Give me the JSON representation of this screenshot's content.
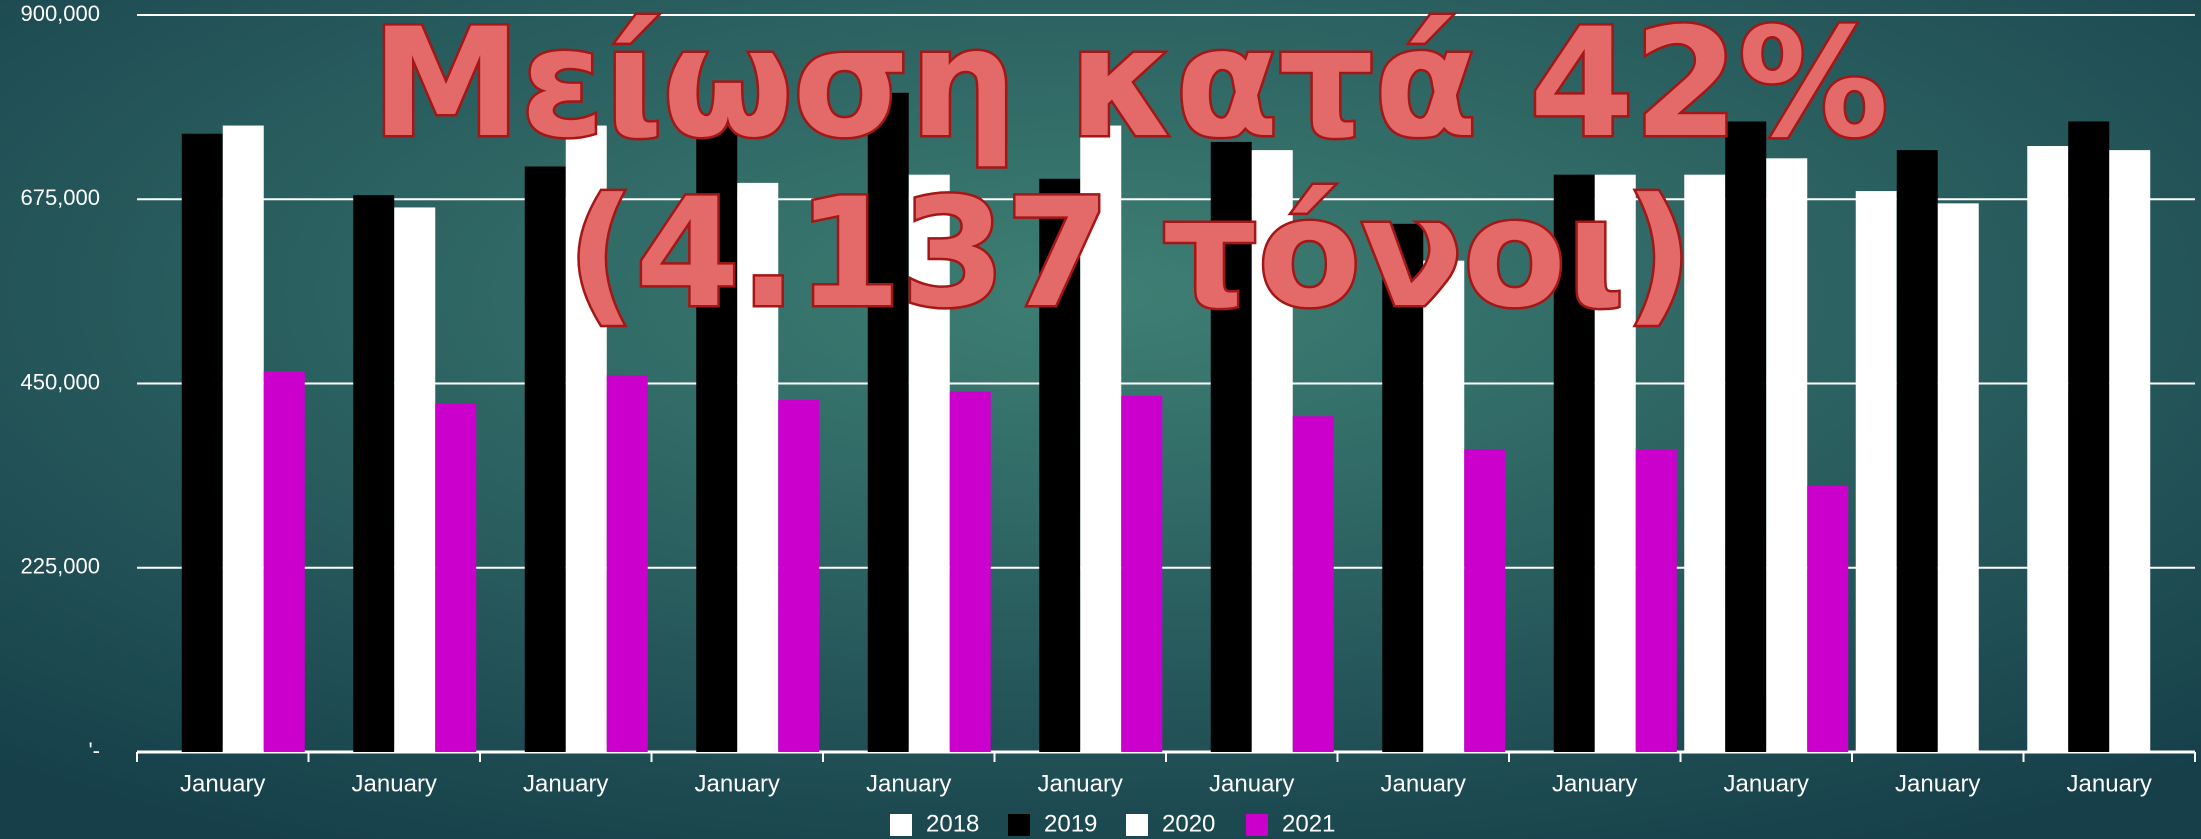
{
  "chart_data": {
    "type": "bar",
    "title": [
      "Μείωση κατά 42%",
      "(4.137 τόνοι)"
    ],
    "categories": [
      "January",
      "January",
      "January",
      "January",
      "January",
      "January",
      "January",
      "January",
      "January",
      "January",
      "January",
      "January"
    ],
    "series": [
      {
        "name": "2018",
        "color": "#ffffff",
        "values": [
          null,
          null,
          null,
          null,
          null,
          null,
          null,
          null,
          null,
          705000,
          685000,
          740000
        ]
      },
      {
        "name": "2019",
        "color": "#000000",
        "values": [
          755000,
          680000,
          715000,
          765000,
          805000,
          700000,
          745000,
          645000,
          705000,
          770000,
          735000,
          770000
        ]
      },
      {
        "name": "2020",
        "color": "#ffffff",
        "values": [
          765000,
          665000,
          765000,
          695000,
          705000,
          765000,
          735000,
          600000,
          705000,
          725000,
          670000,
          735000
        ]
      },
      {
        "name": "2021",
        "color": "#cc00cc",
        "values": [
          465000,
          425000,
          460000,
          430000,
          440000,
          435000,
          410000,
          370000,
          370000,
          325000,
          null,
          null
        ]
      }
    ],
    "ylim": [
      0,
      900000
    ],
    "yticks": [
      {
        "value": 0,
        "label": "'-"
      },
      {
        "value": 225000,
        "label": "225,000"
      },
      {
        "value": 450000,
        "label": "450,000"
      },
      {
        "value": 675000,
        "label": "675,000"
      },
      {
        "value": 900000,
        "label": "900,000"
      }
    ],
    "grid": true,
    "legend": "bottom"
  }
}
